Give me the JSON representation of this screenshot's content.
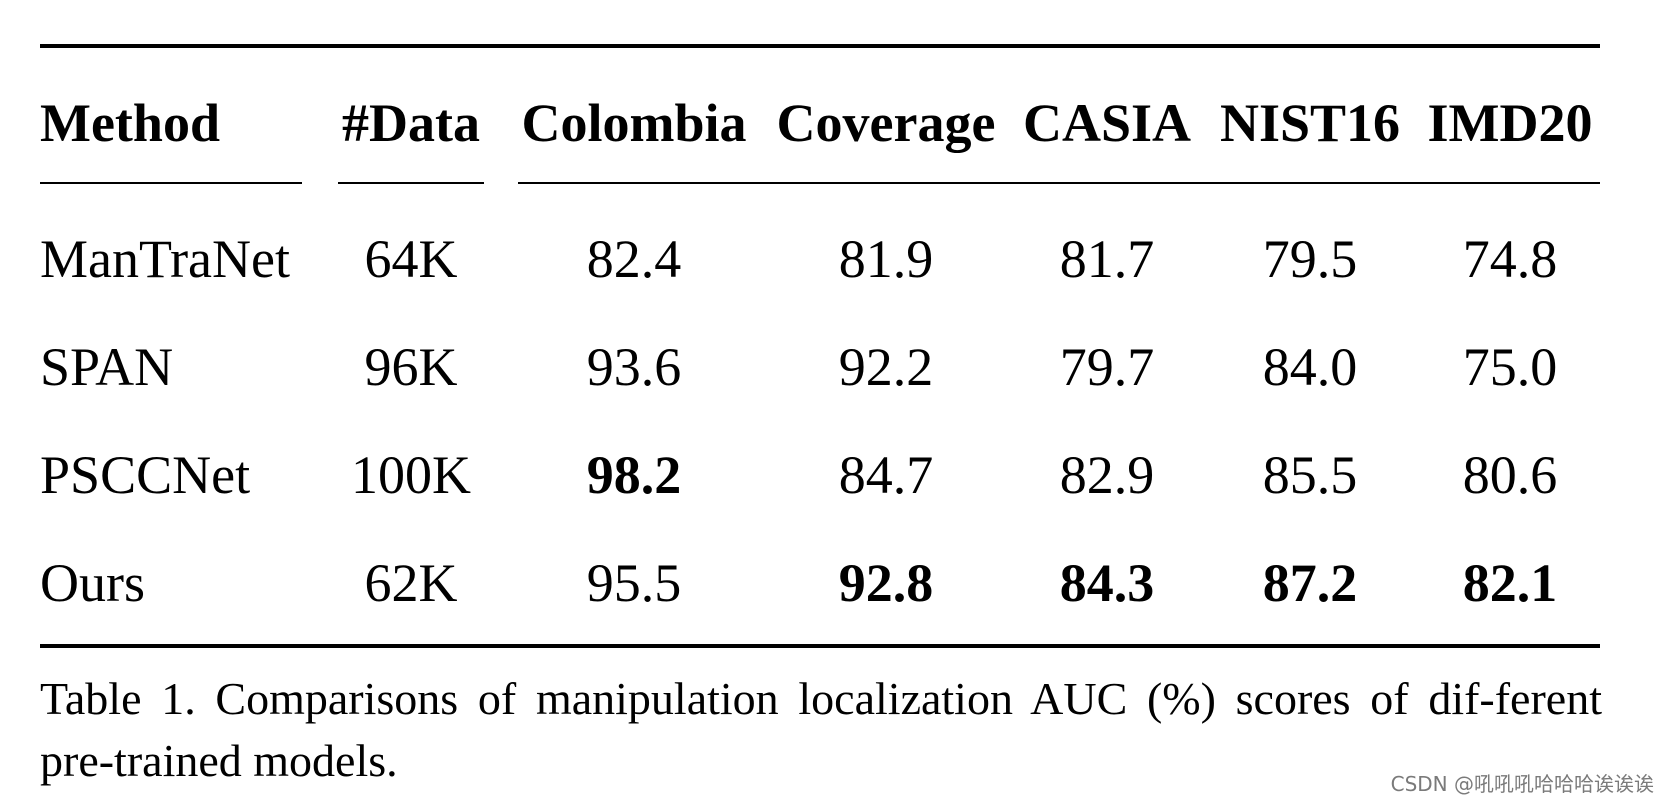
{
  "table": {
    "headers": [
      "Method",
      "#Data",
      "Colombia",
      "Coverage",
      "CASIA",
      "NIST16",
      "IMD20"
    ],
    "rows": [
      {
        "method": "ManTraNet",
        "data": "64K",
        "colombia": "82.4",
        "coverage": "81.9",
        "casia": "81.7",
        "nist16": "79.5",
        "imd20": "74.8"
      },
      {
        "method": "SPAN",
        "data": "96K",
        "colombia": "93.6",
        "coverage": "92.2",
        "casia": "79.7",
        "nist16": "84.0",
        "imd20": "75.0"
      },
      {
        "method": "PSCCNet",
        "data": "100K",
        "colombia": "98.2",
        "coverage": "84.7",
        "casia": "82.9",
        "nist16": "85.5",
        "imd20": "80.6"
      },
      {
        "method": "Ours",
        "data": "62K",
        "colombia": "95.5",
        "coverage": "92.8",
        "casia": "84.3",
        "nist16": "87.2",
        "imd20": "82.1"
      }
    ],
    "caption": "Table 1. Comparisons of manipulation localization AUC (%) scores of dif-ferent pre-trained models."
  },
  "watermark": "CSDN @吼吼吼哈哈哈诶诶诶"
}
